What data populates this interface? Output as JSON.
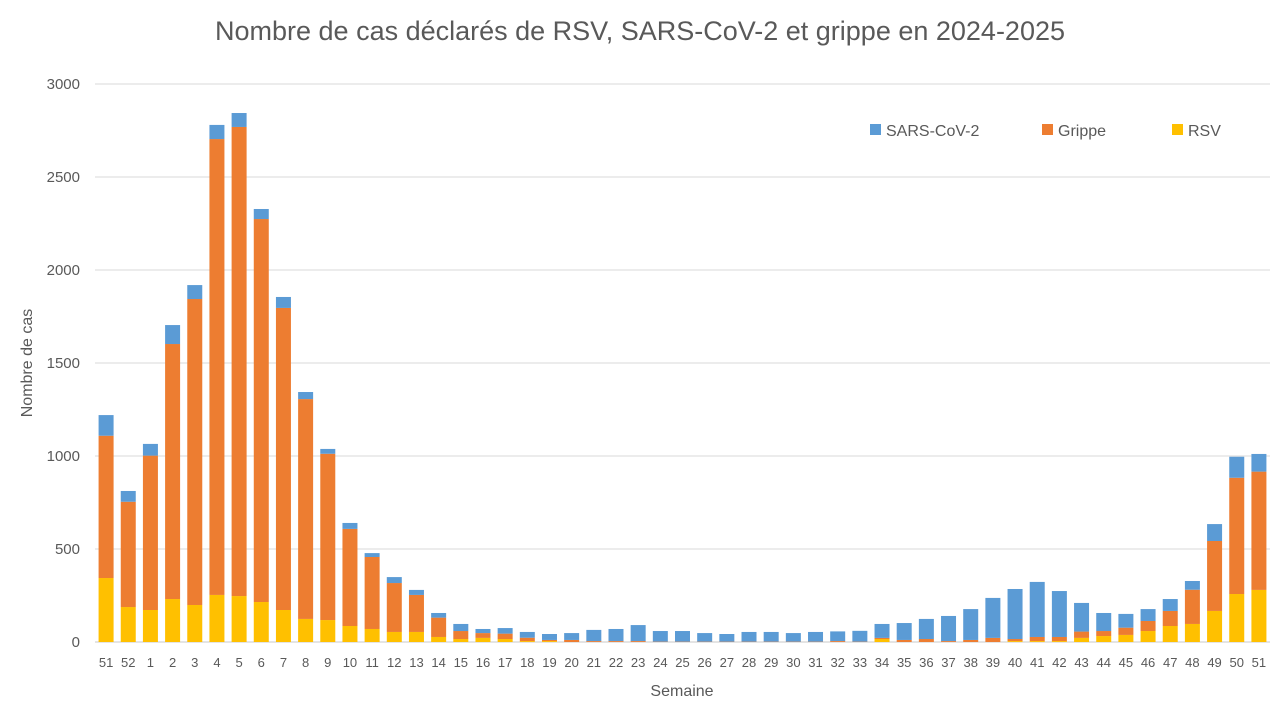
{
  "chart_data": {
    "type": "bar",
    "stacked": true,
    "title": "Nombre de cas déclarés de RSV, SARS-CoV-2 et grippe en 2024-2025",
    "xlabel": "Semaine",
    "ylabel": "Nombre de cas",
    "ylim": [
      0,
      3000
    ],
    "yticks": [
      0,
      500,
      1000,
      1500,
      2000,
      2500,
      3000
    ],
    "grid": true,
    "legend_position": "top-right",
    "categories": [
      "51",
      "52",
      "1",
      "2",
      "3",
      "4",
      "5",
      "6",
      "7",
      "8",
      "9",
      "10",
      "11",
      "12",
      "13",
      "14",
      "15",
      "16",
      "17",
      "18",
      "19",
      "20",
      "21",
      "22",
      "23",
      "24",
      "25",
      "26",
      "27",
      "28",
      "29",
      "30",
      "31",
      "32",
      "33",
      "34",
      "35",
      "36",
      "37",
      "38",
      "39",
      "40",
      "41",
      "42",
      "43",
      "44",
      "45",
      "46",
      "47",
      "48",
      "49",
      "50",
      "51"
    ],
    "series": [
      {
        "name": "RSV",
        "color": "#FFC000",
        "values": [
          344,
          188,
          172,
          231,
          199,
          253,
          247,
          215,
          172,
          124,
          118,
          86,
          70,
          54,
          54,
          27,
          16,
          22,
          16,
          5,
          5,
          0,
          0,
          0,
          0,
          0,
          0,
          0,
          0,
          0,
          0,
          0,
          0,
          0,
          0,
          16,
          0,
          0,
          0,
          0,
          0,
          5,
          5,
          5,
          22,
          32,
          38,
          59,
          86,
          97,
          167,
          258,
          280
        ]
      },
      {
        "name": "Grippe",
        "color": "#ED7D31",
        "values": [
          765,
          566,
          830,
          1371,
          1645,
          2451,
          2522,
          2059,
          1624,
          1182,
          894,
          522,
          387,
          263,
          199,
          104,
          43,
          26,
          29,
          18,
          6,
          11,
          5,
          5,
          5,
          2,
          2,
          2,
          2,
          2,
          2,
          2,
          2,
          5,
          2,
          6,
          11,
          16,
          5,
          11,
          22,
          11,
          22,
          22,
          34,
          27,
          39,
          54,
          81,
          184,
          376,
          625,
          636
        ]
      },
      {
        "name": "SARS-CoV-2",
        "color": "#5B9BD5",
        "values": [
          111,
          58,
          63,
          102,
          75,
          76,
          75,
          54,
          59,
          38,
          26,
          32,
          21,
          32,
          27,
          25,
          38,
          22,
          30,
          31,
          32,
          37,
          60,
          65,
          86,
          57,
          57,
          46,
          41,
          52,
          52,
          46,
          52,
          52,
          58,
          75,
          91,
          108,
          135,
          166,
          215,
          269,
          296,
          247,
          154,
          97,
          74,
          64,
          64,
          47,
          91,
          113,
          95
        ]
      }
    ],
    "legend_order": [
      "SARS-CoV-2",
      "Grippe",
      "RSV"
    ]
  }
}
